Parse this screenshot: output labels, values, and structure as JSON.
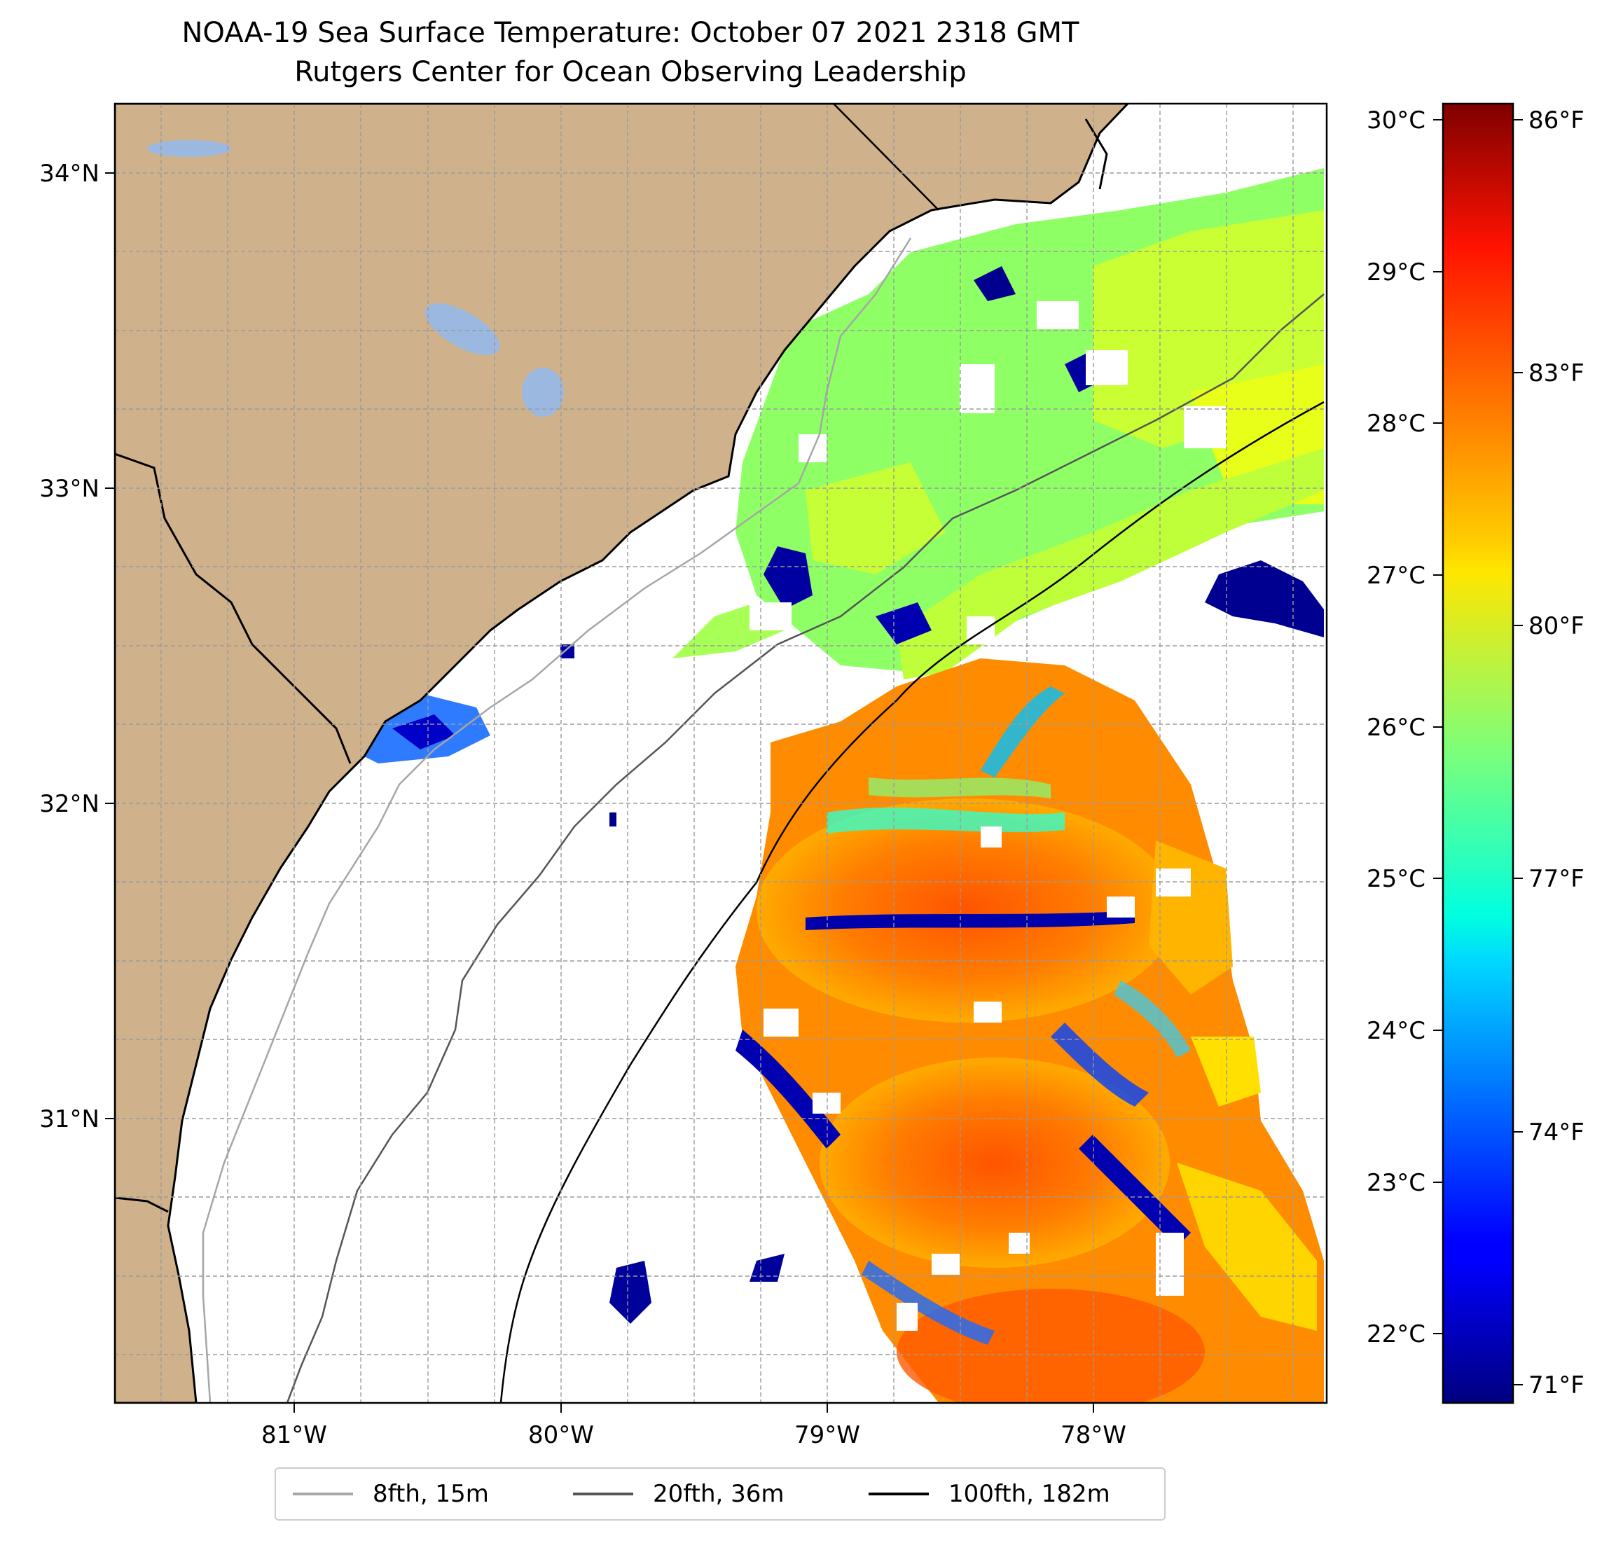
{
  "title": {
    "line1": "NOAA-19 Sea Surface Temperature: October 07 2021 2318 GMT",
    "line2": "Rutgers Center for Ocean Observing Leadership"
  },
  "map": {
    "lat_ticks": [
      "34°N",
      "33°N",
      "32°N",
      "31°N"
    ],
    "lon_ticks": [
      "81°W",
      "80°W",
      "79°W",
      "78°W"
    ],
    "lon_range": [
      -81.65,
      -77.1
    ],
    "lat_range": [
      30.05,
      34.2
    ],
    "land_color": "#CFB28C",
    "lake_color": "#9BB8E0",
    "gridlines": true
  },
  "colorbar": {
    "celsius_ticks": [
      "30°C",
      "29°C",
      "28°C",
      "27°C",
      "26°C",
      "25°C",
      "24°C",
      "23°C",
      "22°C"
    ],
    "fahrenheit_ticks": [
      "86°F",
      "83°F",
      "80°F",
      "77°F",
      "74°F",
      "71°F"
    ],
    "range_celsius": [
      21.6,
      30.1
    ],
    "colormap": "jet"
  },
  "legend": {
    "items": [
      {
        "label": "8fth, 15m",
        "color": "#a6a6a6"
      },
      {
        "label": "20fth, 36m",
        "color": "#555555"
      },
      {
        "label": "100fth, 182m",
        "color": "#000000"
      }
    ]
  }
}
